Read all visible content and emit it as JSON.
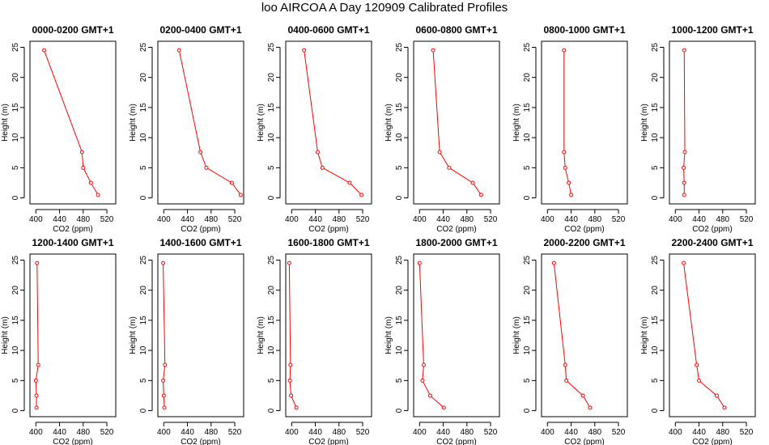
{
  "page_title": "loo AIRCOA A  Day 120909  Calibrated Profiles",
  "colors": {
    "series": "#ff0000",
    "axes": "#000000"
  },
  "chart_data": [
    {
      "type": "line",
      "title": "0000-0200 GMT+1",
      "xlabel": "CO2 (ppm)",
      "ylabel": "Height (m)",
      "xlim": [
        390,
        535
      ],
      "ylim": [
        -1,
        26
      ],
      "xticks": [
        400,
        440,
        480,
        520
      ],
      "yticks": [
        0,
        5,
        10,
        15,
        20,
        25
      ],
      "series": [
        {
          "points": [
            [
              414,
              24.5
            ],
            [
              478,
              7.6
            ],
            [
              480,
              5.0
            ],
            [
              493,
              2.5
            ],
            [
              505,
              0.5
            ]
          ]
        }
      ]
    },
    {
      "type": "line",
      "title": "0200-0400 GMT+1",
      "xlabel": "CO2 (ppm)",
      "ylabel": "Height (m)",
      "xlim": [
        390,
        535
      ],
      "ylim": [
        -1,
        26
      ],
      "xticks": [
        400,
        440,
        480,
        520
      ],
      "yticks": [
        0,
        5,
        10,
        15,
        20,
        25
      ],
      "series": [
        {
          "points": [
            [
              426,
              24.5
            ],
            [
              462,
              7.6
            ],
            [
              472,
              5.0
            ],
            [
              515,
              2.5
            ],
            [
              530,
              0.5
            ]
          ]
        }
      ]
    },
    {
      "type": "line",
      "title": "0400-0600 GMT+1",
      "xlabel": "CO2 (ppm)",
      "ylabel": "Height (m)",
      "xlim": [
        390,
        535
      ],
      "ylim": [
        -1,
        26
      ],
      "xticks": [
        400,
        440,
        480,
        520
      ],
      "yticks": [
        0,
        5,
        10,
        15,
        20,
        25
      ],
      "series": [
        {
          "points": [
            [
              421,
              24.5
            ],
            [
              444,
              7.6
            ],
            [
              452,
              5.0
            ],
            [
              498,
              2.5
            ],
            [
              518,
              0.5
            ]
          ]
        }
      ]
    },
    {
      "type": "line",
      "title": "0600-0800 GMT+1",
      "xlabel": "CO2 (ppm)",
      "ylabel": "Height (m)",
      "xlim": [
        390,
        535
      ],
      "ylim": [
        -1,
        26
      ],
      "xticks": [
        400,
        440,
        480,
        520
      ],
      "yticks": [
        0,
        5,
        10,
        15,
        20,
        25
      ],
      "series": [
        {
          "points": [
            [
              423,
              24.5
            ],
            [
              434,
              7.6
            ],
            [
              450,
              5.0
            ],
            [
              490,
              2.5
            ],
            [
              504,
              0.5
            ]
          ]
        }
      ]
    },
    {
      "type": "line",
      "title": "0800-1000 GMT+1",
      "xlabel": "CO2 (ppm)",
      "ylabel": "Height (m)",
      "xlim": [
        390,
        535
      ],
      "ylim": [
        -1,
        26
      ],
      "xticks": [
        400,
        440,
        480,
        520
      ],
      "yticks": [
        0,
        5,
        10,
        15,
        20,
        25
      ],
      "series": [
        {
          "points": [
            [
              428,
              24.5
            ],
            [
              428,
              7.6
            ],
            [
              430,
              5.0
            ],
            [
              436,
              2.5
            ],
            [
              440,
              0.5
            ]
          ]
        }
      ]
    },
    {
      "type": "line",
      "title": "1000-1200 GMT+1",
      "xlabel": "CO2 (ppm)",
      "ylabel": "Height (m)",
      "xlim": [
        390,
        535
      ],
      "ylim": [
        -1,
        26
      ],
      "xticks": [
        400,
        440,
        480,
        520
      ],
      "yticks": [
        0,
        5,
        10,
        15,
        20,
        25
      ],
      "series": [
        {
          "points": [
            [
              415,
              24.5
            ],
            [
              416,
              7.6
            ],
            [
              414,
              5.0
            ],
            [
              415,
              2.5
            ],
            [
              415,
              0.5
            ]
          ]
        }
      ]
    },
    {
      "type": "line",
      "title": "1200-1400 GMT+1",
      "xlabel": "CO2 (ppm)",
      "ylabel": "Height (m)",
      "xlim": [
        390,
        535
      ],
      "ylim": [
        -1,
        26
      ],
      "xticks": [
        400,
        440,
        480,
        520
      ],
      "yticks": [
        0,
        5,
        10,
        15,
        20,
        25
      ],
      "series": [
        {
          "points": [
            [
              402,
              24.5
            ],
            [
              404,
              7.6
            ],
            [
              400,
              5.0
            ],
            [
              401,
              2.5
            ],
            [
              401,
              0.5
            ]
          ]
        }
      ]
    },
    {
      "type": "line",
      "title": "1400-1600 GMT+1",
      "xlabel": "CO2 (ppm)",
      "ylabel": "Height (m)",
      "xlim": [
        390,
        535
      ],
      "ylim": [
        -1,
        26
      ],
      "xticks": [
        400,
        440,
        480,
        520
      ],
      "yticks": [
        0,
        5,
        10,
        15,
        20,
        25
      ],
      "series": [
        {
          "points": [
            [
              399,
              24.5
            ],
            [
              402,
              7.6
            ],
            [
              399,
              5.0
            ],
            [
              400,
              2.5
            ],
            [
              401,
              0.5
            ]
          ]
        }
      ]
    },
    {
      "type": "line",
      "title": "1600-1800 GMT+1",
      "xlabel": "CO2 (ppm)",
      "ylabel": "Height (m)",
      "xlim": [
        390,
        535
      ],
      "ylim": [
        -1,
        26
      ],
      "xticks": [
        400,
        440,
        480,
        520
      ],
      "yticks": [
        0,
        5,
        10,
        15,
        20,
        25
      ],
      "series": [
        {
          "points": [
            [
              396,
              24.5
            ],
            [
              398,
              7.6
            ],
            [
              397,
              5.0
            ],
            [
              399,
              2.5
            ],
            [
              408,
              0.5
            ]
          ]
        }
      ]
    },
    {
      "type": "line",
      "title": "1800-2000 GMT+1",
      "xlabel": "CO2 (ppm)",
      "ylabel": "Height (m)",
      "xlim": [
        390,
        535
      ],
      "ylim": [
        -1,
        26
      ],
      "xticks": [
        400,
        440,
        480,
        520
      ],
      "yticks": [
        0,
        5,
        10,
        15,
        20,
        25
      ],
      "series": [
        {
          "points": [
            [
              400,
              24.5
            ],
            [
              407,
              7.6
            ],
            [
              405,
              5.0
            ],
            [
              418,
              2.5
            ],
            [
              441,
              0.5
            ]
          ]
        }
      ]
    },
    {
      "type": "line",
      "title": "2000-2200 GMT+1",
      "xlabel": "CO2 (ppm)",
      "ylabel": "Height (m)",
      "xlim": [
        390,
        535
      ],
      "ylim": [
        -1,
        26
      ],
      "xticks": [
        400,
        440,
        480,
        520
      ],
      "yticks": [
        0,
        5,
        10,
        15,
        20,
        25
      ],
      "series": [
        {
          "points": [
            [
              411,
              24.5
            ],
            [
              430,
              7.6
            ],
            [
              432,
              5.0
            ],
            [
              460,
              2.5
            ],
            [
              472,
              0.5
            ]
          ]
        }
      ]
    },
    {
      "type": "line",
      "title": "2200-2400 GMT+1",
      "xlabel": "CO2 (ppm)",
      "ylabel": "Height (m)",
      "xlim": [
        390,
        535
      ],
      "ylim": [
        -1,
        26
      ],
      "xticks": [
        400,
        440,
        480,
        520
      ],
      "yticks": [
        0,
        5,
        10,
        15,
        20,
        25
      ],
      "series": [
        {
          "points": [
            [
              414,
              24.5
            ],
            [
              436,
              7.6
            ],
            [
              440,
              5.0
            ],
            [
              470,
              2.5
            ],
            [
              483,
              0.5
            ]
          ]
        }
      ]
    }
  ]
}
